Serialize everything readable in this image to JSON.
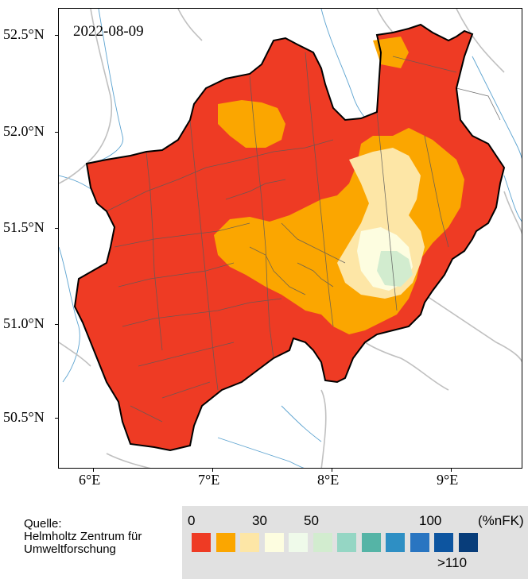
{
  "map": {
    "date": "2022-08-09",
    "lat_labels": [
      "52.5°N",
      "52.0°N",
      "51.5°N",
      "51.0°N",
      "50.5°N"
    ],
    "lon_labels": [
      "6°E",
      "7°E",
      "8°E",
      "9°E"
    ],
    "lat_values": [
      52.5,
      52.0,
      51.5,
      51.0,
      50.5
    ],
    "lon_values": [
      6,
      7,
      8,
      9
    ]
  },
  "source": {
    "line1": "Quelle:",
    "line2": "Helmholtz Zentrum für",
    "line3": "Umweltforschung"
  },
  "legend": {
    "labels": {
      "zero": "0",
      "thirty": "30",
      "fifty": "50",
      "hundred": "100",
      "unit": "(%nFK)",
      "max": ">110"
    },
    "colors": [
      "#ee3b24",
      "#fba600",
      "#fde6a6",
      "#fdfde0",
      "#effaea",
      "#d2eccf",
      "#95d6c4",
      "#55b4a6",
      "#2e8fc4",
      "#2975c1",
      "#0d55a0",
      "#083d7a"
    ]
  },
  "region_colors": {
    "very_dry": "#ee3b24",
    "dry": "#fba600",
    "moderate": "#fde6a6",
    "normal": "#fdfde0",
    "wet": "#d2eccf"
  }
}
